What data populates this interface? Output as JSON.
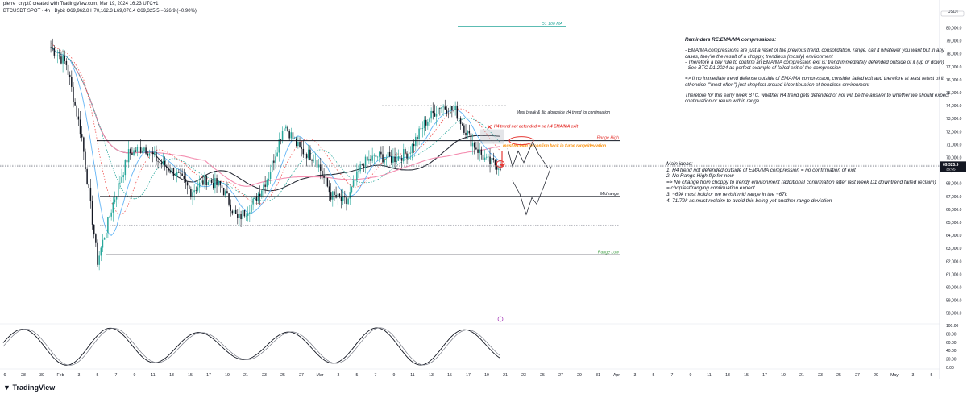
{
  "header": {
    "byline": "pierre_crypt0 created with TradingView.com, Mar 19, 2024 16:23 UTC+1",
    "symbol_line": "BTCUSDT SPOT · 4h · Bybit  O69,962.8  H70,162.3  L69,076.4  C69,325.5  −626.9 (−0.90%)"
  },
  "footer": {
    "logo": "TradingView"
  },
  "chart_data": {
    "type": "line",
    "title": "",
    "series": [
      {
        "name": "",
        "values": [
          78500,
          77200,
          71500,
          62000,
          66500,
          70300,
          70800,
          69600,
          68800,
          67400,
          68300,
          67700,
          65200,
          66500,
          68600,
          72600,
          70600,
          70000,
          67100,
          66500,
          69500,
          70100,
          69900,
          70400,
          72600,
          74000,
          73600,
          71300,
          69700,
          69300
        ]
      }
    ],
    "currency": "USDT",
    "last_price": "69,325.9",
    "countdown": "36:55",
    "y_ticks": [
      "80,000.0",
      "79,000.0",
      "78,000.0",
      "77,000.0",
      "76,000.0",
      "75,000.0",
      "74,000.0",
      "73,000.0",
      "72,000.0",
      "71,000.0",
      "70,000.0",
      "69,000.0",
      "68,000.0",
      "67,000.0",
      "66,000.0",
      "65,000.0",
      "64,000.0",
      "63,000.0",
      "62,000.0",
      "61,000.0",
      "60,000.0",
      "59,000.0",
      "58,000.0"
    ],
    "osc_ticks": [
      "100.00",
      "80.00",
      "60.00",
      "40.00",
      "20.00",
      "0.00"
    ],
    "x_ticks": [
      "6",
      "28",
      "30",
      "Feb",
      "3",
      "5",
      "7",
      "9",
      "11",
      "13",
      "15",
      "17",
      "19",
      "21",
      "23",
      "25",
      "27",
      "Mar",
      "3",
      "5",
      "7",
      "9",
      "11",
      "13",
      "15",
      "17",
      "19",
      "21",
      "23",
      "25",
      "27",
      "29",
      "31",
      "Apr",
      "3",
      "5",
      "7",
      "9",
      "11",
      "13",
      "15",
      "17",
      "19",
      "21",
      "23",
      "25",
      "27",
      "29",
      "May",
      "3",
      "5"
    ],
    "levels": {
      "range_high": {
        "label": "Range High",
        "value": 71300
      },
      "mid_range": {
        "label": "Mid range",
        "value": 67000
      },
      "range_low": {
        "label": "Range Low",
        "value": 62500
      },
      "must_break": {
        "label": "Must break & flip alongside H4 trend for continuation",
        "value": 74000
      },
      "d1_100ma": {
        "label": "D1 100 MA",
        "value": 80100
      },
      "dotted_upper": 69400,
      "dotted_lower": 64800
    },
    "annotations": {
      "h4_not_defended": "H4 trend not defended = no H4 EMA/MA exit",
      "must_reclaim": "must reclaim or confirm back in turbo range/deviation"
    }
  },
  "notes": {
    "title": "Reminders RE:EMA/MA compressions:",
    "paragraphs": [
      "- EMA/MA compressions are just a reset of the previous trend, consolidation, range, call it whatever you want but in any cases, they're the result of a choppy, trendless (mostly) environment",
      "- Therefore a key rule to confirm an EMA/MA compression exit is: trend immediately defended outside of it (up or down)",
      "- See BTC D1 2024 as perfect example of failed exit of the compression",
      "=> If no immediate trend defense outside of EMA/MA compression, consider failed exit and therefore at least retest of it, otherwise (\"most often\") just chopfest around it/continuation of trendless environment",
      "Therefore for this early week BTC, whether H4 trend gets defended or not will be the answer to whether we should expect continuation or return within range."
    ]
  },
  "ideas": {
    "title": "Main ideas:",
    "items": [
      "1. H4 trend not defended outside of EMA/MA compression = no confirmation of exit",
      "2. No Range High flip for now",
      "=> No change from choppy to trendy environment (additional confirmation after last week D1 downtrend failed reclaim) = chopfest/ranging continuation expect",
      "3. ~69k must hold or we revisit mid range in the ~67k",
      "4. 71/72k as must reclaim to avoid this being yet another range deviation"
    ]
  },
  "colors": {
    "candle_up": "#26a69a",
    "candle_down": "#131722",
    "ma_dark": "#2a2e39",
    "ma_pink": "#f48fb1",
    "ma_blue": "#64b5f6",
    "ma_green_dotted": "#26a69a",
    "ma_red_dotted": "#ef5350",
    "range_high": "#e53935",
    "range_low": "#43a047",
    "d1_ma": "#26a69a",
    "annotation_red": "#e53935",
    "annotation_orange": "#fb8c00",
    "last_price_bg": "#131722"
  }
}
